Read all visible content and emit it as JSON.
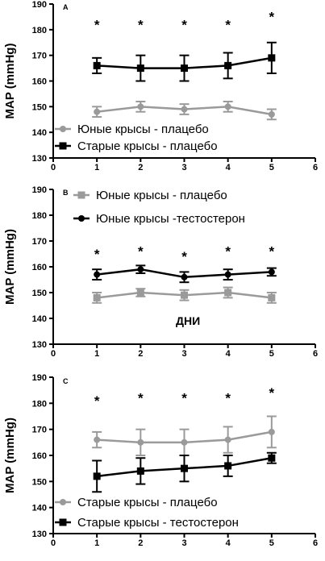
{
  "chart_data": [
    {
      "type": "line",
      "panel_label": "A",
      "ylabel": "MAP (mmHg)",
      "xlim": [
        0,
        6
      ],
      "ylim": [
        130,
        190
      ],
      "xticks": [
        0,
        1,
        2,
        3,
        4,
        5,
        6
      ],
      "yticks": [
        130,
        140,
        150,
        160,
        170,
        180,
        190
      ],
      "x": [
        1,
        2,
        3,
        4,
        5
      ],
      "legend_position": "bottom-left",
      "series": [
        {
          "name": "Юные крысы - плацебо",
          "marker": "circle",
          "color": "#9a9a9a",
          "values": [
            148,
            150,
            149,
            150,
            147
          ],
          "errors": [
            2,
            2,
            2,
            2,
            2
          ]
        },
        {
          "name": "Старые крысы - плацебо",
          "marker": "square",
          "color": "#000000",
          "values": [
            166,
            165,
            165,
            166,
            169
          ],
          "errors": [
            3,
            5,
            5,
            5,
            6
          ]
        }
      ],
      "significance": [
        "*",
        "*",
        "*",
        "*",
        "*"
      ],
      "significance_y": [
        183,
        183,
        183,
        183,
        186
      ]
    },
    {
      "type": "line",
      "panel_label": "B",
      "ylabel": "MAP (mmHg)",
      "xlim": [
        0,
        6
      ],
      "ylim": [
        130,
        190
      ],
      "xticks": [
        0,
        1,
        2,
        3,
        4,
        5,
        6
      ],
      "yticks": [
        130,
        140,
        150,
        160,
        170,
        180,
        190
      ],
      "x": [
        1,
        2,
        3,
        4,
        5
      ],
      "legend_position": "top-center",
      "annotation": "ДНИ",
      "series": [
        {
          "name": "Юные крысы - плацебо",
          "marker": "square",
          "color": "#9a9a9a",
          "values": [
            148,
            150,
            149,
            150,
            148
          ],
          "errors": [
            2,
            1.5,
            2,
            2,
            2
          ]
        },
        {
          "name": "Юные крысы -тестостерон",
          "marker": "circle",
          "color": "#000000",
          "values": [
            157,
            159,
            156,
            157,
            158
          ],
          "errors": [
            2,
            1.5,
            2,
            2,
            1.5
          ]
        }
      ],
      "significance": [
        "*",
        "*",
        "*",
        "*",
        "*"
      ],
      "significance_y": [
        166,
        167,
        165,
        167,
        167
      ]
    },
    {
      "type": "line",
      "panel_label": "C",
      "ylabel": "MAP (mmHg)",
      "xlim": [
        0,
        6
      ],
      "ylim": [
        130,
        190
      ],
      "xticks": [
        0,
        1,
        2,
        3,
        4,
        5,
        6
      ],
      "yticks": [
        130,
        140,
        150,
        160,
        170,
        180,
        190
      ],
      "x": [
        1,
        2,
        3,
        4,
        5
      ],
      "legend_position": "bottom-left",
      "series": [
        {
          "name": "Старые крысы - плацебо",
          "marker": "circle",
          "color": "#9a9a9a",
          "values": [
            166,
            165,
            165,
            166,
            169
          ],
          "errors": [
            3,
            5,
            5,
            5,
            6
          ]
        },
        {
          "name": "Старые крысы - тестостерон",
          "marker": "square",
          "color": "#000000",
          "values": [
            152,
            154,
            155,
            156,
            159
          ],
          "errors": [
            6,
            5,
            5,
            4,
            2
          ]
        }
      ],
      "significance": [
        "*",
        "*",
        "*",
        "*",
        "*"
      ],
      "significance_y": [
        182,
        183,
        183,
        183,
        185
      ]
    }
  ]
}
